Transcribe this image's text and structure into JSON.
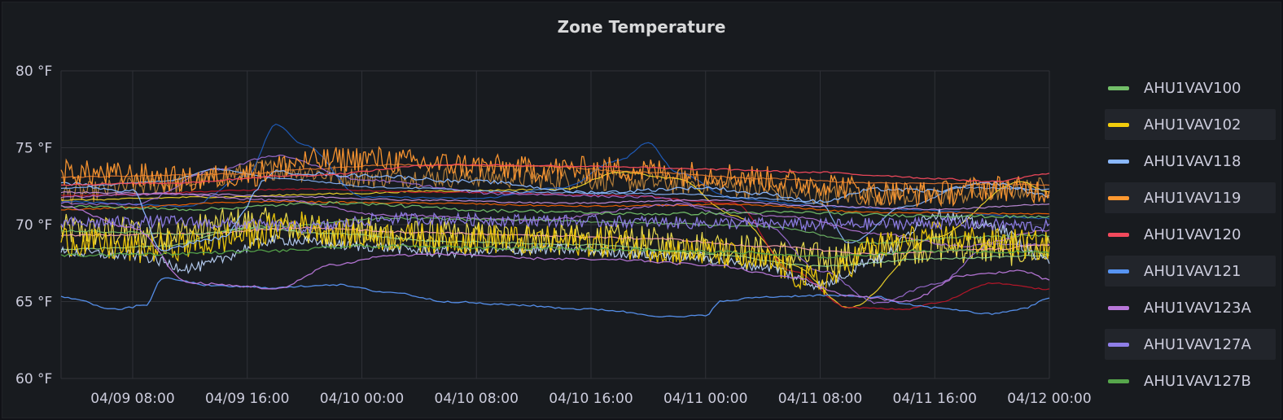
{
  "panel": {
    "title": "Zone Temperature"
  },
  "chart_data": {
    "type": "line",
    "title": "Zone Temperature",
    "xlabel": "",
    "ylabel": "",
    "y_unit": "°F",
    "ylim": [
      60,
      80
    ],
    "xlim": [
      "04/09 03:00",
      "04/12 00:00"
    ],
    "grid": true,
    "legend_position": "right",
    "y_ticks": [
      {
        "value": 60,
        "label": "60 °F"
      },
      {
        "value": 65,
        "label": "65 °F"
      },
      {
        "value": 70,
        "label": "70 °F"
      },
      {
        "value": 75,
        "label": "75 °F"
      },
      {
        "value": 80,
        "label": "80 °F"
      }
    ],
    "x_ticks": [
      {
        "hour": 8,
        "label": "04/09 08:00"
      },
      {
        "hour": 16,
        "label": "04/09 16:00"
      },
      {
        "hour": 24,
        "label": "04/10 00:00"
      },
      {
        "hour": 32,
        "label": "04/10 08:00"
      },
      {
        "hour": 40,
        "label": "04/10 16:00"
      },
      {
        "hour": 48,
        "label": "04/11 00:00"
      },
      {
        "hour": 56,
        "label": "04/11 08:00"
      },
      {
        "hour": 64,
        "label": "04/11 16:00"
      },
      {
        "hour": 72,
        "label": "04/12 00:00"
      }
    ],
    "series": [
      {
        "name": "AHU1VAV100",
        "color": "#73bf69",
        "noise": 0.1,
        "x": [
          3,
          12,
          22,
          34,
          44,
          54,
          62,
          72
        ],
        "y": [
          71.2,
          71.0,
          71.4,
          70.9,
          70.7,
          70.8,
          70.6,
          70.5
        ]
      },
      {
        "name": "AHU1VAV102",
        "color": "#f2cc0c",
        "noise": 1.0,
        "x": [
          3,
          8,
          12,
          16,
          19,
          24,
          30,
          40,
          48,
          52,
          56,
          60,
          64,
          68,
          72
        ],
        "y": [
          69.0,
          68.4,
          68.7,
          69.3,
          70.0,
          69.3,
          69.1,
          68.9,
          68.2,
          67.6,
          66.3,
          68.6,
          69.2,
          68.9,
          68.6
        ]
      },
      {
        "name": "AHU1VAV118",
        "color": "#8ab8ff",
        "noise": 0.12,
        "x": [
          3,
          8,
          10,
          14,
          18,
          24,
          32,
          40,
          48,
          52,
          56,
          60,
          64,
          68,
          72
        ],
        "y": [
          72.7,
          72.2,
          68.4,
          69.1,
          73.4,
          73.2,
          72.8,
          72.1,
          72.4,
          72.0,
          71.5,
          72.3,
          72.2,
          72.7,
          71.9
        ]
      },
      {
        "name": "AHU1VAV119",
        "color": "#ff9830",
        "noise": 0.85,
        "x": [
          3,
          8,
          12,
          16,
          20,
          24,
          30,
          36,
          42,
          48,
          56,
          60,
          64,
          68,
          72
        ],
        "y": [
          73.4,
          73.2,
          72.9,
          73.3,
          74.1,
          74.3,
          73.9,
          73.6,
          73.6,
          73.3,
          72.7,
          72.1,
          72.0,
          72.4,
          72.2
        ]
      },
      {
        "name": "AHU1VAV120",
        "color": "#f2495c",
        "noise": 0.05,
        "x": [
          3,
          10,
          20,
          30,
          40,
          48,
          56,
          60,
          64,
          68,
          72
        ],
        "y": [
          72.6,
          72.7,
          73.2,
          73.9,
          73.8,
          73.6,
          73.4,
          73.2,
          73.0,
          72.8,
          73.3
        ]
      },
      {
        "name": "AHU1VAV121",
        "color": "#5794f2",
        "noise": 0.06,
        "x": [
          3,
          7,
          9,
          10,
          14,
          18,
          22,
          26,
          30,
          34,
          40,
          46,
          48,
          49,
          52,
          56,
          60,
          62,
          64,
          68,
          70,
          72
        ],
        "y": [
          65.3,
          64.5,
          64.8,
          66.5,
          66.0,
          65.9,
          66.1,
          65.6,
          65.0,
          64.8,
          64.5,
          64.0,
          64.1,
          65.0,
          65.3,
          65.4,
          65.3,
          64.8,
          64.6,
          64.2,
          64.5,
          65.2
        ]
      },
      {
        "name": "AHU1VAV123A",
        "color": "#b877d9",
        "noise": 0.08,
        "x": [
          3,
          8,
          12,
          16,
          18,
          22,
          26,
          30,
          36,
          42,
          48,
          54,
          58,
          62,
          66,
          70,
          72
        ],
        "y": [
          71.2,
          69.8,
          66.2,
          66.0,
          65.8,
          67.4,
          68.0,
          68.1,
          67.8,
          67.7,
          67.4,
          66.6,
          65.4,
          65.0,
          66.7,
          67.0,
          66.4
        ]
      },
      {
        "name": "AHU1VAV127A",
        "color": "#8f7ee8",
        "noise": 0.4,
        "x": [
          3,
          10,
          16,
          20,
          26,
          34,
          42,
          48,
          56,
          64,
          72
        ],
        "y": [
          70.1,
          70.2,
          70.0,
          69.8,
          70.4,
          70.3,
          70.2,
          70.1,
          70.0,
          70.1,
          69.9
        ]
      },
      {
        "name": "AHU1VAV127B",
        "color": "#56a64b",
        "noise": 0.1,
        "x": [
          3,
          10,
          18,
          24,
          34,
          42,
          50,
          56,
          64,
          72
        ],
        "y": [
          68.0,
          68.1,
          68.3,
          68.6,
          68.5,
          68.4,
          68.2,
          67.9,
          68.3,
          68.2
        ]
      }
    ],
    "extra_lines": [
      {
        "color": "#ffee52",
        "noise": 1.1,
        "x": [
          3,
          10,
          16,
          22,
          30,
          40,
          48,
          56,
          64,
          72
        ],
        "y": [
          69.6,
          69.4,
          70.1,
          69.5,
          69.2,
          69.0,
          68.6,
          67.8,
          68.6,
          68.3
        ]
      },
      {
        "color": "#c4883c",
        "noise": 0.7,
        "x": [
          3,
          10,
          18,
          24,
          32,
          40,
          48,
          56,
          64,
          72
        ],
        "y": [
          72.0,
          72.6,
          73.6,
          73.1,
          73.1,
          72.9,
          72.6,
          71.9,
          71.9,
          72.4
        ]
      },
      {
        "color": "#e0752d",
        "noise": 0.04,
        "x": [
          3,
          16,
          20,
          26,
          36,
          44,
          52,
          60,
          72
        ],
        "y": [
          73.1,
          73.3,
          73.6,
          73.9,
          73.8,
          73.4,
          73.0,
          72.7,
          72.6
        ]
      },
      {
        "color": "#fade2a",
        "noise": 0.05,
        "x": [
          3,
          14,
          22,
          30,
          38,
          42,
          46,
          50,
          54,
          58,
          64,
          70,
          72
        ],
        "y": [
          71.6,
          71.8,
          72.0,
          72.2,
          72.3,
          73.4,
          73.0,
          70.6,
          67.4,
          64.6,
          69.2,
          72.8,
          72.1
        ]
      },
      {
        "color": "#1f60c4",
        "noise": 0.05,
        "x": [
          3,
          12,
          16,
          18,
          20,
          24,
          32,
          38,
          42,
          44,
          46,
          50,
          56,
          62,
          72
        ],
        "y": [
          71.5,
          71.2,
          73.2,
          76.5,
          75.2,
          71.8,
          71.7,
          72.4,
          74.2,
          75.3,
          73.4,
          71.7,
          71.2,
          71.0,
          70.4
        ]
      },
      {
        "color": "#c4162a",
        "noise": 0.04,
        "x": [
          3,
          20,
          30,
          42,
          50,
          54,
          58,
          62,
          64,
          68,
          72
        ],
        "y": [
          71.9,
          72.3,
          72.1,
          71.9,
          71.4,
          67.0,
          64.6,
          64.5,
          64.9,
          66.2,
          65.8
        ]
      },
      {
        "color": "#fa6400",
        "noise": 0.05,
        "x": [
          3,
          18,
          28,
          40,
          50,
          60,
          72
        ],
        "y": [
          71.0,
          71.5,
          71.4,
          71.2,
          71.3,
          70.8,
          70.7
        ]
      },
      {
        "color": "#a16fd8",
        "noise": 0.08,
        "x": [
          3,
          8,
          14,
          18,
          24,
          34,
          44,
          52,
          56,
          60,
          64,
          68,
          72
        ],
        "y": [
          71.4,
          71.3,
          73.6,
          74.5,
          72.9,
          72.0,
          71.8,
          70.1,
          67.0,
          64.9,
          66.1,
          68.7,
          68.7
        ]
      },
      {
        "color": "#96d98d",
        "noise": 0.05,
        "x": [
          3,
          10,
          16,
          22,
          30,
          40,
          48,
          56,
          64,
          72
        ],
        "y": [
          68.4,
          68.6,
          69.8,
          69.4,
          68.9,
          68.7,
          68.1,
          67.3,
          67.8,
          68.0
        ]
      },
      {
        "color": "#ffa6b0",
        "noise": 0.06,
        "x": [
          3,
          12,
          20,
          28,
          36,
          44,
          52,
          60,
          68,
          72
        ],
        "y": [
          69.3,
          69.4,
          69.8,
          69.5,
          69.3,
          69.1,
          68.6,
          68.1,
          68.4,
          68.7
        ]
      },
      {
        "color": "#c0d8ff",
        "noise": 0.35,
        "x": [
          3,
          8,
          12,
          18,
          24,
          30,
          38,
          46,
          52,
          56,
          60,
          64,
          68,
          72
        ],
        "y": [
          68.2,
          68.0,
          67.2,
          69.0,
          68.6,
          68.2,
          68.4,
          68.0,
          67.3,
          66.1,
          67.8,
          70.7,
          69.9,
          67.6
        ]
      },
      {
        "color": "#8ab8ff",
        "noise": 0.05,
        "x": [
          3,
          10,
          14,
          18,
          26,
          36,
          46,
          52,
          56,
          58,
          62,
          66,
          72
        ],
        "y": [
          72.4,
          72.8,
          73.6,
          73.0,
          72.4,
          72.1,
          72.0,
          71.7,
          71.4,
          68.8,
          71.2,
          72.4,
          72.3
        ]
      },
      {
        "color": "#ca95e5",
        "noise": 0.05,
        "x": [
          3,
          12,
          20,
          28,
          38,
          48,
          56,
          64,
          72
        ],
        "y": [
          72.1,
          72.0,
          71.8,
          71.6,
          71.4,
          71.6,
          71.2,
          71.0,
          71.3
        ]
      },
      {
        "color": "#b877d9",
        "noise": 0.07,
        "x": [
          3,
          10,
          18,
          26,
          36,
          46,
          54,
          60,
          66,
          72
        ],
        "y": [
          71.8,
          72.0,
          71.6,
          70.6,
          70.3,
          71.3,
          70.5,
          69.4,
          68.6,
          69.6
        ]
      },
      {
        "color": "#73bf69",
        "noise": 0.07,
        "x": [
          3,
          12,
          18,
          26,
          36,
          44,
          52,
          60,
          66,
          72
        ],
        "y": [
          69.6,
          69.4,
          69.9,
          70.4,
          70.3,
          70.1,
          69.9,
          68.8,
          69.2,
          69.3
        ]
      }
    ]
  }
}
